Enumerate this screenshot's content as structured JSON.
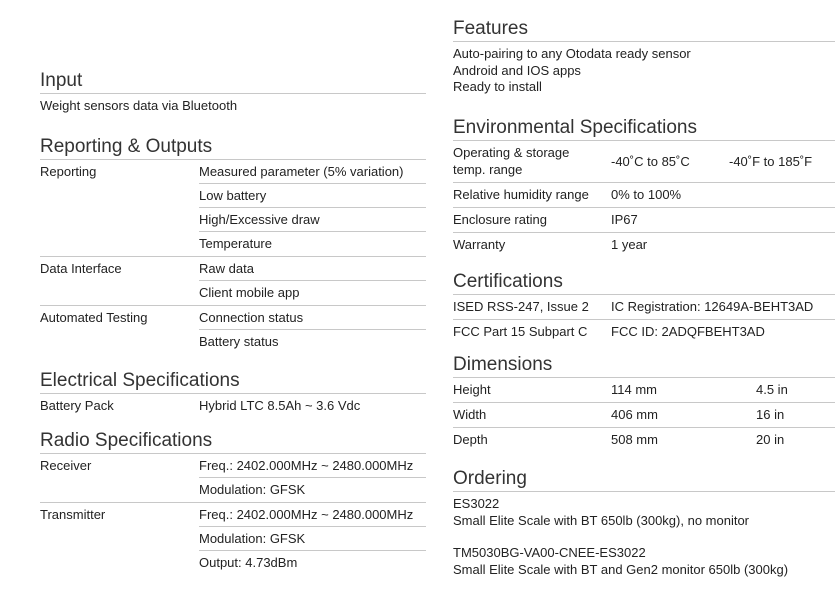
{
  "input": {
    "title": "Input",
    "text": "Weight sensors data via Bluetooth"
  },
  "reporting": {
    "title": "Reporting & Outputs",
    "groups": [
      {
        "label": "Reporting",
        "values": [
          "Measured parameter (5% variation)",
          "Low battery",
          "High/Excessive draw",
          "Temperature"
        ]
      },
      {
        "label": "Data Interface",
        "values": [
          "Raw data",
          "Client mobile app"
        ]
      },
      {
        "label": "Automated Testing",
        "values": [
          "Connection status",
          "Battery status"
        ]
      }
    ]
  },
  "electrical": {
    "title": "Electrical Specifications",
    "label": "Battery Pack",
    "value": "Hybrid LTC 8.5Ah ~ 3.6 Vdc"
  },
  "radio": {
    "title": "Radio Specifications",
    "groups": [
      {
        "label": "Receiver",
        "values": [
          "Freq.: 2402.000MHz ~ 2480.000MHz",
          "Modulation: GFSK"
        ]
      },
      {
        "label": "Transmitter",
        "values": [
          "Freq.: 2402.000MHz ~ 2480.000MHz",
          "Modulation: GFSK",
          "Output: 4.73dBm"
        ]
      }
    ]
  },
  "features": {
    "title": "Features",
    "items": [
      "Auto-pairing to any Otodata ready sensor",
      "Android and IOS apps",
      "Ready to install"
    ]
  },
  "environmental": {
    "title": "Environmental Specifications",
    "rows": [
      {
        "label": "Operating & storage temp. range",
        "value": "-40˚C to 85˚C",
        "value2": "-40˚F to 185˚F"
      },
      {
        "label": "Relative humidity range",
        "value": "0% to 100%"
      },
      {
        "label": "Enclosure rating",
        "value": "IP67"
      },
      {
        "label": "Warranty",
        "value": "1 year"
      }
    ]
  },
  "certifications": {
    "title": "Certifications",
    "rows": [
      {
        "label": "ISED RSS-247, Issue 2",
        "value": "IC Registration: 12649A-BEHT3AD"
      },
      {
        "label": "FCC Part 15 Subpart C",
        "value": "FCC ID: 2ADQFBEHT3AD"
      }
    ]
  },
  "dimensions": {
    "title": "Dimensions",
    "rows": [
      {
        "label": "Height",
        "value": "114 mm",
        "value2": "4.5 in"
      },
      {
        "label": "Width",
        "value": "406 mm",
        "value2": "16 in"
      },
      {
        "label": "Depth",
        "value": "508 mm",
        "value2": "20 in"
      }
    ]
  },
  "ordering": {
    "title": "Ordering",
    "items": [
      {
        "code": "ES3022",
        "desc": "Small Elite Scale with BT 650lb (300kg), no monitor"
      },
      {
        "code": "TM5030BG-VA00-CNEE-ES3022",
        "desc": "Small Elite Scale with BT and Gen2 monitor 650lb (300kg)"
      }
    ]
  }
}
